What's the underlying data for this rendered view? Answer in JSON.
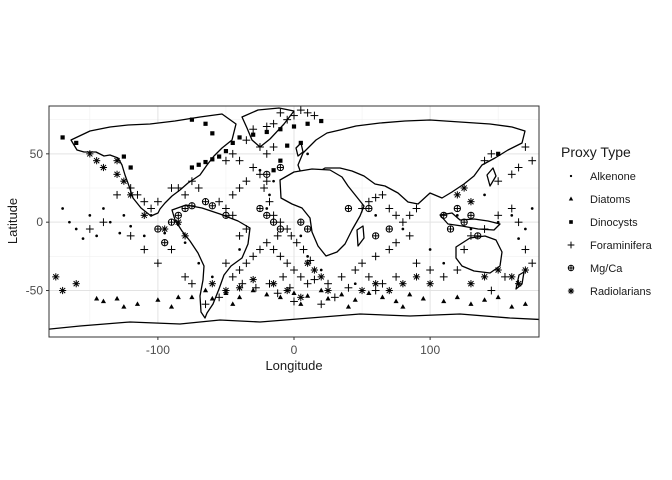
{
  "chart_data": {
    "type": "scatter",
    "xlabel": "Longitude",
    "ylabel": "Latitude",
    "xlim": [
      -180,
      180
    ],
    "ylim": [
      -84,
      85
    ],
    "x_ticks": [
      {
        "value": -100,
        "label": "-100"
      },
      {
        "value": 0,
        "label": "0"
      },
      {
        "value": 100,
        "label": "100"
      }
    ],
    "y_ticks": [
      {
        "value": 50,
        "label": "50"
      },
      {
        "value": 0,
        "label": "0"
      },
      {
        "value": -50,
        "label": "-50"
      }
    ],
    "grid": true,
    "legend": {
      "title": "Proxy Type",
      "placement": "right",
      "entries": [
        {
          "label": "Alkenone",
          "symbol": "dot"
        },
        {
          "label": "Diatoms",
          "symbol": "triangle"
        },
        {
          "label": "Dinocysts",
          "symbol": "square"
        },
        {
          "label": "Foraminifera",
          "symbol": "plus"
        },
        {
          "label": "Mg/Ca",
          "symbol": "circle-cross"
        },
        {
          "label": "Radiolarians",
          "symbol": "asterisk"
        }
      ]
    },
    "series": [
      {
        "name": "Alkenone",
        "symbol": "dot",
        "points": [
          [
            -165,
            0
          ],
          [
            -160,
            -5
          ],
          [
            -150,
            5
          ],
          [
            -145,
            -10
          ],
          [
            -140,
            10
          ],
          [
            -135,
            0
          ],
          [
            -128,
            -8
          ],
          [
            -125,
            5
          ],
          [
            -120,
            -3
          ],
          [
            -110,
            -10
          ],
          [
            -105,
            5
          ],
          [
            -95,
            -8
          ],
          [
            -85,
            -2
          ],
          [
            -80,
            -15
          ],
          [
            -40,
            -20
          ],
          [
            -20,
            10
          ],
          [
            -18,
            20
          ],
          [
            5,
            -10
          ],
          [
            10,
            -25
          ],
          [
            20,
            -35
          ],
          [
            60,
            5
          ],
          [
            80,
            -5
          ],
          [
            120,
            5
          ],
          [
            130,
            -5
          ],
          [
            150,
            0
          ],
          [
            160,
            5
          ],
          [
            170,
            -5
          ],
          [
            175,
            10
          ],
          [
            -70,
            -30
          ],
          [
            -60,
            -40
          ],
          [
            10,
            50
          ],
          [
            -25,
            38
          ],
          [
            -15,
            30
          ],
          [
            45,
            -45
          ],
          [
            100,
            -20
          ],
          [
            110,
            -30
          ],
          [
            140,
            20
          ],
          [
            -155,
            -12
          ],
          [
            -170,
            10
          ],
          [
            165,
            -12
          ]
        ]
      },
      {
        "name": "Diatoms",
        "symbol": "triangle",
        "points": [
          [
            -140,
            -58
          ],
          [
            -130,
            -56
          ],
          [
            -115,
            -60
          ],
          [
            -100,
            -57
          ],
          [
            -85,
            -55
          ],
          [
            -75,
            -55
          ],
          [
            -60,
            -56
          ],
          [
            -50,
            -52
          ],
          [
            -40,
            -55
          ],
          [
            -30,
            -50
          ],
          [
            -20,
            -53
          ],
          [
            -10,
            -55
          ],
          [
            0,
            -52
          ],
          [
            10,
            -54
          ],
          [
            20,
            -50
          ],
          [
            25,
            -56
          ],
          [
            35,
            -53
          ],
          [
            45,
            -57
          ],
          [
            55,
            -52
          ],
          [
            65,
            -55
          ],
          [
            75,
            -58
          ],
          [
            85,
            -53
          ],
          [
            95,
            -56
          ],
          [
            110,
            -58
          ],
          [
            120,
            -55
          ],
          [
            130,
            -60
          ],
          [
            140,
            -57
          ],
          [
            150,
            -55
          ],
          [
            160,
            -62
          ],
          [
            170,
            -60
          ],
          [
            -125,
            -62
          ],
          [
            -90,
            -62
          ],
          [
            -45,
            -60
          ],
          [
            5,
            -60
          ],
          [
            40,
            -62
          ],
          [
            80,
            -62
          ],
          [
            -145,
            -56
          ],
          [
            -65,
            -50
          ]
        ]
      },
      {
        "name": "Dinocysts",
        "symbol": "square",
        "points": [
          [
            -75,
            40
          ],
          [
            -70,
            42
          ],
          [
            -65,
            44
          ],
          [
            -60,
            46
          ],
          [
            -55,
            48
          ],
          [
            -50,
            52
          ],
          [
            -45,
            58
          ],
          [
            -40,
            62
          ],
          [
            -30,
            64
          ],
          [
            -20,
            66
          ],
          [
            -10,
            68
          ],
          [
            0,
            70
          ],
          [
            10,
            72
          ],
          [
            20,
            74
          ],
          [
            -5,
            56
          ],
          [
            5,
            58
          ],
          [
            -60,
            65
          ],
          [
            -65,
            72
          ],
          [
            -75,
            75
          ],
          [
            -160,
            58
          ],
          [
            -170,
            62
          ],
          [
            150,
            50
          ],
          [
            -120,
            40
          ],
          [
            -125,
            48
          ],
          [
            -10,
            45
          ],
          [
            -15,
            38
          ]
        ]
      },
      {
        "name": "Foraminifera",
        "symbol": "plus",
        "points": [
          [
            -30,
            40
          ],
          [
            -25,
            35
          ],
          [
            -20,
            30
          ],
          [
            -22,
            25
          ],
          [
            -18,
            15
          ],
          [
            -15,
            5
          ],
          [
            -10,
            0
          ],
          [
            -5,
            -5
          ],
          [
            -12,
            -10
          ],
          [
            -20,
            -15
          ],
          [
            -25,
            -20
          ],
          [
            -30,
            -25
          ],
          [
            -35,
            -30
          ],
          [
            -40,
            -35
          ],
          [
            -15,
            -20
          ],
          [
            -10,
            -25
          ],
          [
            -5,
            -30
          ],
          [
            0,
            -35
          ],
          [
            5,
            -40
          ],
          [
            10,
            -45
          ],
          [
            15,
            -42
          ],
          [
            -8,
            -40
          ],
          [
            -18,
            -45
          ],
          [
            -28,
            -48
          ],
          [
            -38,
            -45
          ],
          [
            -45,
            -40
          ],
          [
            -50,
            -30
          ],
          [
            -40,
            -10
          ],
          [
            -35,
            -5
          ],
          [
            -45,
            5
          ],
          [
            -50,
            10
          ],
          [
            -55,
            15
          ],
          [
            -45,
            20
          ],
          [
            -40,
            25
          ],
          [
            -35,
            30
          ],
          [
            -70,
            25
          ],
          [
            -75,
            30
          ],
          [
            -80,
            20
          ],
          [
            -85,
            25
          ],
          [
            -90,
            25
          ],
          [
            -100,
            15
          ],
          [
            -105,
            10
          ],
          [
            -110,
            15
          ],
          [
            -115,
            20
          ],
          [
            -120,
            25
          ],
          [
            -130,
            20
          ],
          [
            -140,
            0
          ],
          [
            -150,
            -5
          ],
          [
            -120,
            -10
          ],
          [
            -110,
            -20
          ],
          [
            -100,
            -30
          ],
          [
            -90,
            -20
          ],
          [
            -80,
            -40
          ],
          [
            -75,
            -45
          ],
          [
            50,
            10
          ],
          [
            55,
            15
          ],
          [
            60,
            18
          ],
          [
            65,
            20
          ],
          [
            70,
            10
          ],
          [
            75,
            5
          ],
          [
            80,
            0
          ],
          [
            85,
            5
          ],
          [
            90,
            10
          ],
          [
            85,
            -10
          ],
          [
            75,
            -15
          ],
          [
            70,
            -20
          ],
          [
            60,
            -25
          ],
          [
            50,
            -30
          ],
          [
            45,
            -35
          ],
          [
            55,
            -40
          ],
          [
            65,
            -45
          ],
          [
            75,
            -40
          ],
          [
            90,
            -30
          ],
          [
            100,
            -35
          ],
          [
            110,
            -40
          ],
          [
            120,
            -35
          ],
          [
            125,
            -20
          ],
          [
            130,
            -10
          ],
          [
            140,
            -5
          ],
          [
            150,
            5
          ],
          [
            160,
            10
          ],
          [
            165,
            0
          ],
          [
            170,
            -20
          ],
          [
            175,
            -30
          ],
          [
            155,
            -40
          ],
          [
            145,
            -50
          ],
          [
            150,
            30
          ],
          [
            160,
            35
          ],
          [
            165,
            40
          ],
          [
            140,
            45
          ],
          [
            145,
            50
          ],
          [
            170,
            55
          ],
          [
            175,
            45
          ],
          [
            -10,
            80
          ],
          [
            0,
            78
          ],
          [
            5,
            82
          ],
          [
            10,
            80
          ],
          [
            15,
            78
          ],
          [
            -5,
            75
          ],
          [
            -15,
            72
          ],
          [
            -20,
            70
          ],
          [
            -30,
            68
          ],
          [
            -35,
            60
          ],
          [
            -25,
            55
          ],
          [
            -20,
            50
          ],
          [
            -15,
            55
          ],
          [
            -40,
            45
          ],
          [
            -45,
            50
          ],
          [
            -50,
            45
          ],
          [
            20,
            -60
          ],
          [
            30,
            -55
          ],
          [
            40,
            -48
          ],
          [
            60,
            -50
          ],
          [
            -55,
            -55
          ],
          [
            -65,
            -60
          ],
          [
            -2,
            -10
          ],
          [
            2,
            -15
          ],
          [
            7,
            -20
          ],
          [
            12,
            -28
          ],
          [
            -3,
            -48
          ],
          [
            -12,
            -52
          ],
          [
            0,
            -58
          ],
          [
            25,
            -45
          ],
          [
            35,
            -40
          ]
        ]
      },
      {
        "name": "Mg/Ca",
        "symbol": "circle-cross",
        "points": [
          [
            -90,
            0
          ],
          [
            -85,
            5
          ],
          [
            -80,
            10
          ],
          [
            -75,
            12
          ],
          [
            -65,
            15
          ],
          [
            -60,
            12
          ],
          [
            -50,
            5
          ],
          [
            -25,
            10
          ],
          [
            -20,
            5
          ],
          [
            -15,
            0
          ],
          [
            -10,
            -5
          ],
          [
            5,
            0
          ],
          [
            10,
            -5
          ],
          [
            40,
            10
          ],
          [
            55,
            10
          ],
          [
            60,
            -10
          ],
          [
            70,
            -5
          ],
          [
            110,
            5
          ],
          [
            115,
            -5
          ],
          [
            120,
            10
          ],
          [
            125,
            0
          ],
          [
            130,
            5
          ],
          [
            135,
            -10
          ],
          [
            -100,
            -5
          ],
          [
            -95,
            -15
          ],
          [
            -20,
            35
          ],
          [
            -10,
            40
          ]
        ]
      },
      {
        "name": "Radiolarians",
        "symbol": "asterisk",
        "points": [
          [
            -140,
            40
          ],
          [
            -130,
            35
          ],
          [
            -125,
            30
          ],
          [
            -120,
            20
          ],
          [
            -110,
            5
          ],
          [
            -95,
            -5
          ],
          [
            -85,
            0
          ],
          [
            -80,
            -10
          ],
          [
            -170,
            -50
          ],
          [
            -175,
            -40
          ],
          [
            -160,
            -45
          ],
          [
            10,
            -30
          ],
          [
            15,
            -35
          ],
          [
            20,
            -40
          ],
          [
            25,
            -50
          ],
          [
            5,
            -55
          ],
          [
            -5,
            -50
          ],
          [
            -15,
            -45
          ],
          [
            50,
            -50
          ],
          [
            60,
            -45
          ],
          [
            70,
            -50
          ],
          [
            80,
            -45
          ],
          [
            90,
            -40
          ],
          [
            100,
            -45
          ],
          [
            130,
            -45
          ],
          [
            140,
            -40
          ],
          [
            150,
            -35
          ],
          [
            160,
            -40
          ],
          [
            165,
            -45
          ],
          [
            170,
            -35
          ],
          [
            -60,
            -45
          ],
          [
            -50,
            -50
          ],
          [
            -40,
            -48
          ],
          [
            -30,
            -42
          ],
          [
            120,
            20
          ],
          [
            125,
            25
          ],
          [
            130,
            15
          ],
          [
            -150,
            50
          ],
          [
            -145,
            45
          ],
          [
            -130,
            45
          ]
        ]
      }
    ]
  }
}
